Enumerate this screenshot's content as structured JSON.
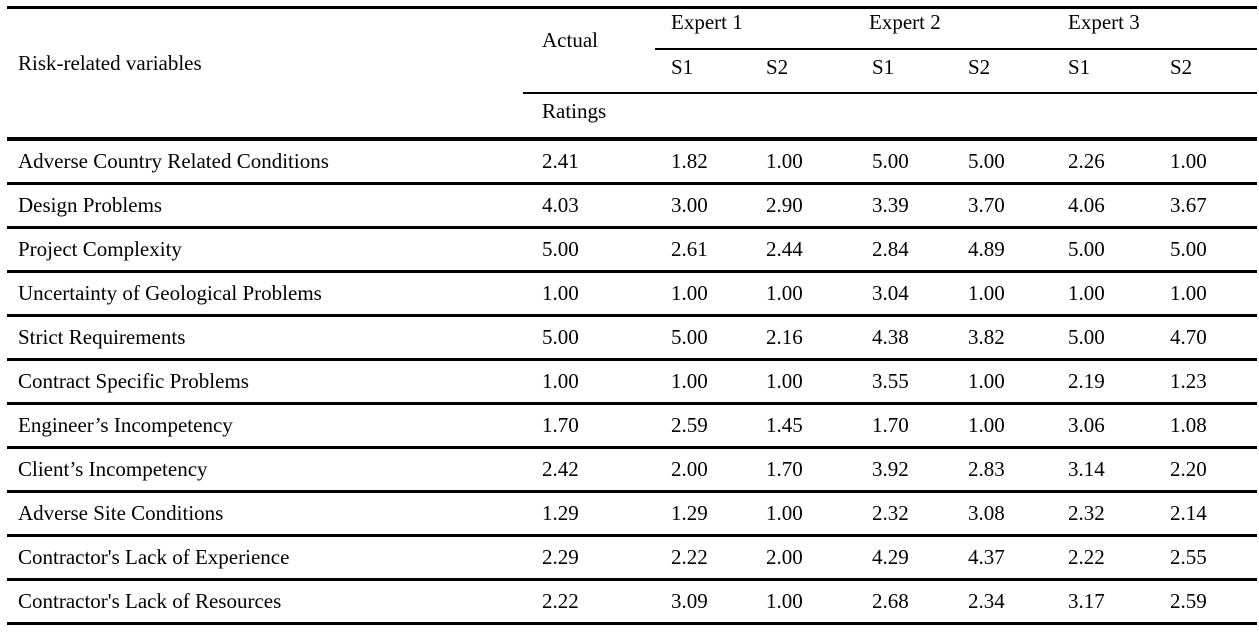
{
  "table": {
    "header": {
      "risk_variables": "Risk-related variables",
      "actual": "Actual",
      "ratings": "Ratings",
      "experts": [
        "Expert 1",
        "Expert 2",
        "Expert 3"
      ],
      "subheaders": [
        "S1",
        "S2",
        "S1",
        "S2",
        "S1",
        "S2"
      ]
    },
    "rows": [
      {
        "label": "Adverse Country Related Conditions",
        "values": [
          "2.41",
          "1.82",
          "1.00",
          "5.00",
          "5.00",
          "2.26",
          "1.00"
        ]
      },
      {
        "label": "Design Problems",
        "values": [
          "4.03",
          "3.00",
          "2.90",
          "3.39",
          "3.70",
          "4.06",
          "3.67"
        ]
      },
      {
        "label": "Project Complexity",
        "values": [
          "5.00",
          "2.61",
          "2.44",
          "2.84",
          "4.89",
          "5.00",
          "5.00"
        ]
      },
      {
        "label": "Uncertainty of Geological Problems",
        "values": [
          "1.00",
          "1.00",
          "1.00",
          "3.04",
          "1.00",
          "1.00",
          "1.00"
        ]
      },
      {
        "label": "Strict Requirements",
        "values": [
          "5.00",
          "5.00",
          "2.16",
          "4.38",
          "3.82",
          "5.00",
          "4.70"
        ]
      },
      {
        "label": "Contract Specific Problems",
        "values": [
          "1.00",
          "1.00",
          "1.00",
          "3.55",
          "1.00",
          "2.19",
          "1.23"
        ]
      },
      {
        "label": "Engineer’s Incompetency",
        "values": [
          "1.70",
          "2.59",
          "1.45",
          "1.70",
          "1.00",
          "3.06",
          "1.08"
        ]
      },
      {
        "label": "Client’s Incompetency",
        "values": [
          "2.42",
          "2.00",
          "1.70",
          "3.92",
          "2.83",
          "3.14",
          "2.20"
        ]
      },
      {
        "label": "Adverse Site Conditions",
        "values": [
          "1.29",
          "1.29",
          "1.00",
          "2.32",
          "3.08",
          "2.32",
          "2.14"
        ]
      },
      {
        "label": "Contractor's Lack of Experience",
        "values": [
          "2.29",
          "2.22",
          "2.00",
          "4.29",
          "4.37",
          "2.22",
          "2.55"
        ]
      },
      {
        "label": "Contractor's Lack of Resources",
        "values": [
          "2.22",
          "3.09",
          "1.00",
          "2.68",
          "2.34",
          "3.17",
          "2.59"
        ]
      }
    ],
    "colors": {
      "text": "#000000",
      "rule": "#000000",
      "background": "#ffffff"
    }
  }
}
